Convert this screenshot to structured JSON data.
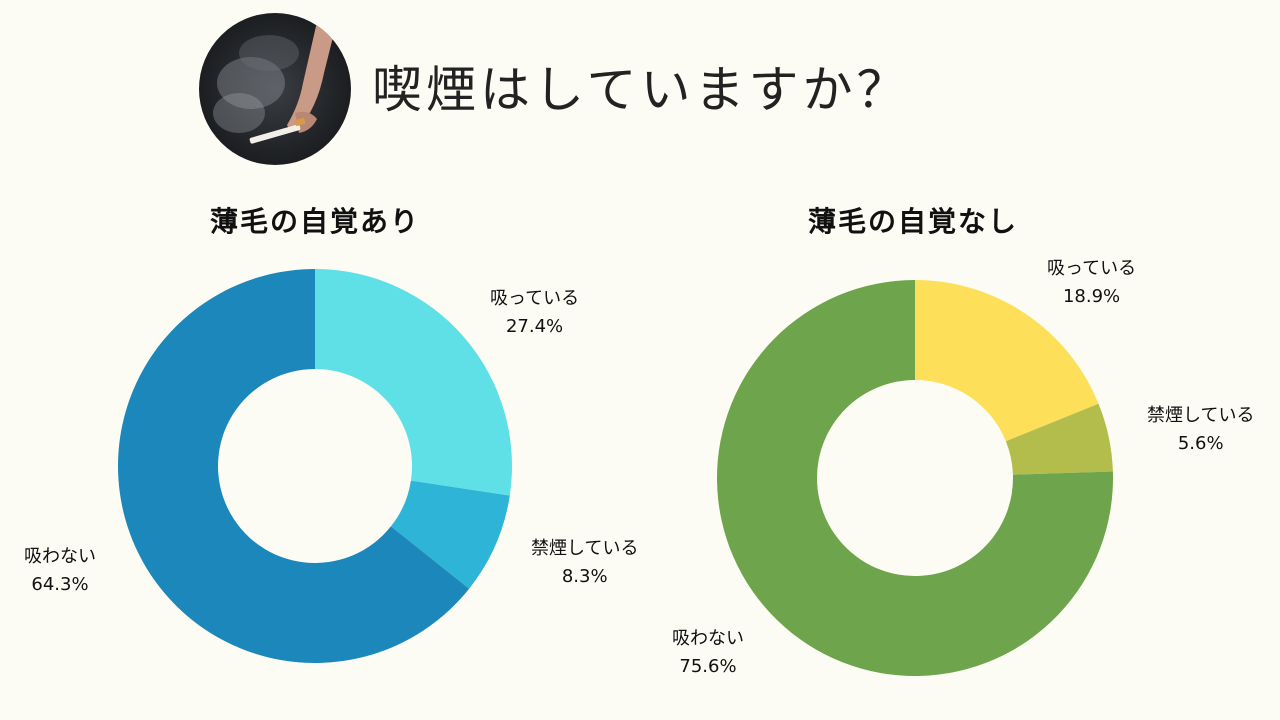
{
  "title": "喫煙はしていますか？",
  "header_image": {
    "icon": "smoking-hand-photo"
  },
  "chart_data": [
    {
      "type": "pie",
      "variant": "donut",
      "title": "薄毛の自覚あり",
      "categories": [
        "吸っている",
        "禁煙している",
        "吸わない"
      ],
      "values": [
        27.4,
        8.3,
        64.3
      ],
      "value_labels": [
        "27.4%",
        "8.3%",
        "64.3%"
      ],
      "colors": [
        "#5ee0e6",
        "#2eb4d6",
        "#1b87ba"
      ],
      "start": "top, clockwise"
    },
    {
      "type": "pie",
      "variant": "donut",
      "title": "薄毛の自覚なし",
      "categories": [
        "吸っている",
        "禁煙している",
        "吸わない"
      ],
      "values": [
        18.9,
        5.6,
        75.6
      ],
      "value_labels": [
        "18.9%",
        "5.6%",
        "75.6%"
      ],
      "colors": [
        "#fddf5a",
        "#b2bd4c",
        "#6ea44b"
      ],
      "start": "top, clockwise"
    }
  ]
}
